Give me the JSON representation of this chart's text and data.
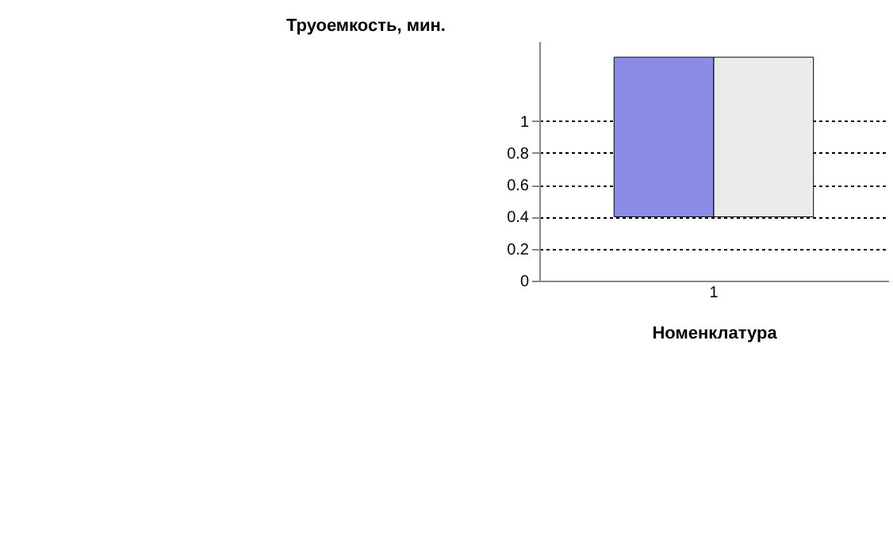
{
  "chart_data": {
    "type": "bar",
    "xlabel": "Номенклатура",
    "ylabel": "Труоемкость, мин.",
    "categories": [
      "1"
    ],
    "series": [
      {
        "color": "#8c8ce6",
        "values": [
          1.0
        ],
        "base": [
          0.4
        ]
      },
      {
        "color": "#ebebeb",
        "values": [
          1.0
        ],
        "base": [
          0.4
        ]
      }
    ],
    "ylim": [
      0,
      1.5
    ],
    "yticks": [
      0,
      0.2,
      0.4,
      0.6,
      0.8,
      1
    ],
    "grid": "y"
  }
}
